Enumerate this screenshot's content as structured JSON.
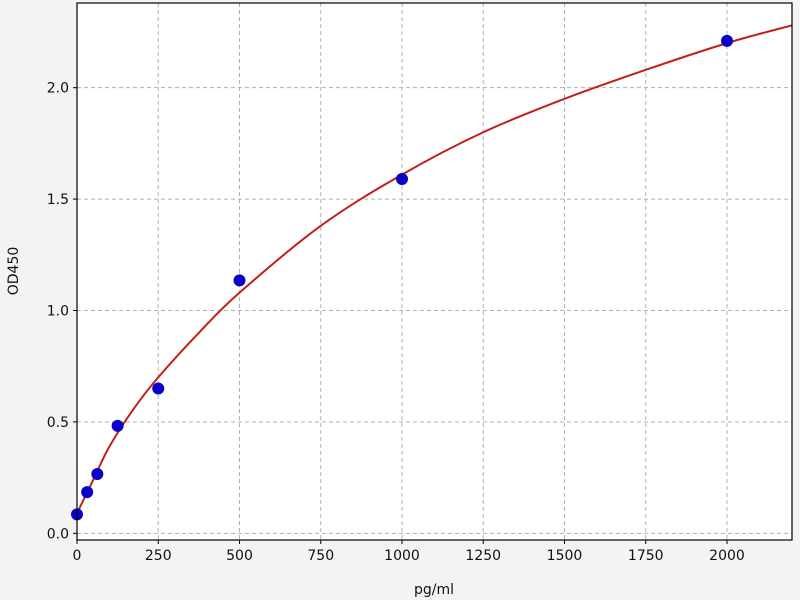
{
  "chart_data": {
    "type": "scatter",
    "title": "",
    "xlabel": "pg/ml",
    "ylabel": "OD450",
    "xlim": [
      0,
      2200
    ],
    "ylim": [
      -0.03,
      2.38
    ],
    "grid": true,
    "x_ticks": [
      0,
      250,
      500,
      750,
      1000,
      1250,
      1500,
      1750,
      2000
    ],
    "y_ticks": [
      "0.0",
      "0.5",
      "1.0",
      "1.5",
      "2.0"
    ],
    "series": [
      {
        "kind": "points",
        "color": "#0a00c8",
        "x": [
          0,
          31.25,
          62.5,
          125,
          250,
          500,
          1000,
          2000
        ],
        "y": [
          0.085,
          0.185,
          0.266,
          0.482,
          0.65,
          1.135,
          1.59,
          2.21
        ]
      },
      {
        "kind": "fit-curve",
        "color": "#c0201c",
        "x": [
          0,
          25,
          50,
          100,
          175,
          250,
          375,
          500,
          750,
          1000,
          1250,
          1500,
          1750,
          2000,
          2200
        ],
        "y": [
          0.09,
          0.165,
          0.24,
          0.39,
          0.56,
          0.7,
          0.9,
          1.08,
          1.38,
          1.61,
          1.8,
          1.95,
          2.08,
          2.2,
          2.28
        ]
      }
    ]
  }
}
